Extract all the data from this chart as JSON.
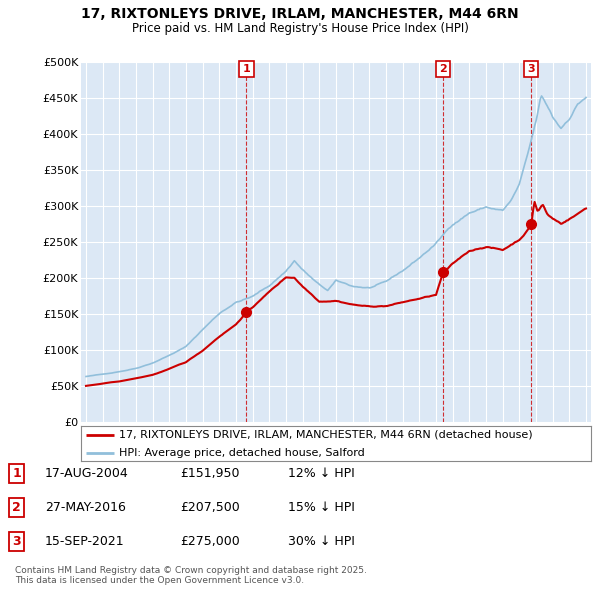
{
  "title": "17, RIXTONLEYS DRIVE, IRLAM, MANCHESTER, M44 6RN",
  "subtitle": "Price paid vs. HM Land Registry's House Price Index (HPI)",
  "hpi_label": "HPI: Average price, detached house, Salford",
  "property_label": "17, RIXTONLEYS DRIVE, IRLAM, MANCHESTER, M44 6RN (detached house)",
  "hpi_color": "#91bfdb",
  "property_color": "#cc0000",
  "plot_bg_color": "#dce8f5",
  "grid_color": "#ffffff",
  "ylim": [
    0,
    500000
  ],
  "yticks": [
    0,
    50000,
    100000,
    150000,
    200000,
    250000,
    300000,
    350000,
    400000,
    450000,
    500000
  ],
  "sales": [
    {
      "num": 1,
      "date_num": 2004.625,
      "price": 151950
    },
    {
      "num": 2,
      "date_num": 2016.41,
      "price": 207500
    },
    {
      "num": 3,
      "date_num": 2021.708,
      "price": 275000
    }
  ],
  "table_rows": [
    {
      "num": 1,
      "date": "17-AUG-2004",
      "price": "£151,950",
      "note": "12% ↓ HPI"
    },
    {
      "num": 2,
      "date": "27-MAY-2016",
      "price": "£207,500",
      "note": "15% ↓ HPI"
    },
    {
      "num": 3,
      "date": "15-SEP-2021",
      "price": "£275,000",
      "note": "30% ↓ HPI"
    }
  ],
  "footnote": "Contains HM Land Registry data © Crown copyright and database right 2025.\nThis data is licensed under the Open Government Licence v3.0."
}
